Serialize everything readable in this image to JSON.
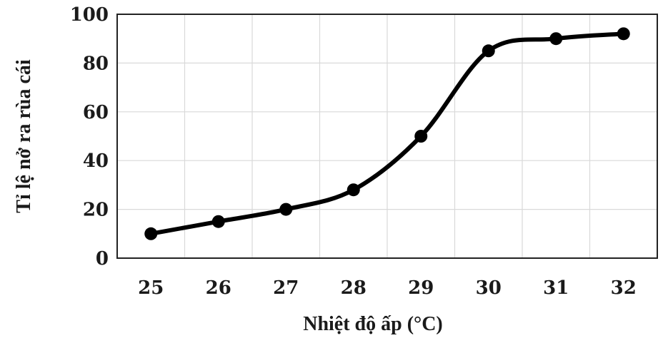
{
  "chart_data": {
    "type": "line",
    "smooth": true,
    "title": "",
    "xlabel": "Nhiệt độ ấp (°C)",
    "ylabel": "Tỉ lệ nở ra rùa cái",
    "x": [
      25,
      26,
      27,
      28,
      29,
      30,
      31,
      32
    ],
    "xticks": [
      "25",
      "26",
      "27",
      "28",
      "29",
      "30",
      "31",
      "32"
    ],
    "xlim": [
      24.5,
      32.5
    ],
    "yticks": [
      "0",
      "20",
      "40",
      "60",
      "80",
      "100"
    ],
    "ylim": [
      0,
      100
    ],
    "grid": true,
    "legend": "none",
    "series": [
      {
        "values": [
          10,
          15,
          20,
          28,
          50,
          85,
          90,
          92
        ],
        "color": "#000000"
      }
    ]
  }
}
